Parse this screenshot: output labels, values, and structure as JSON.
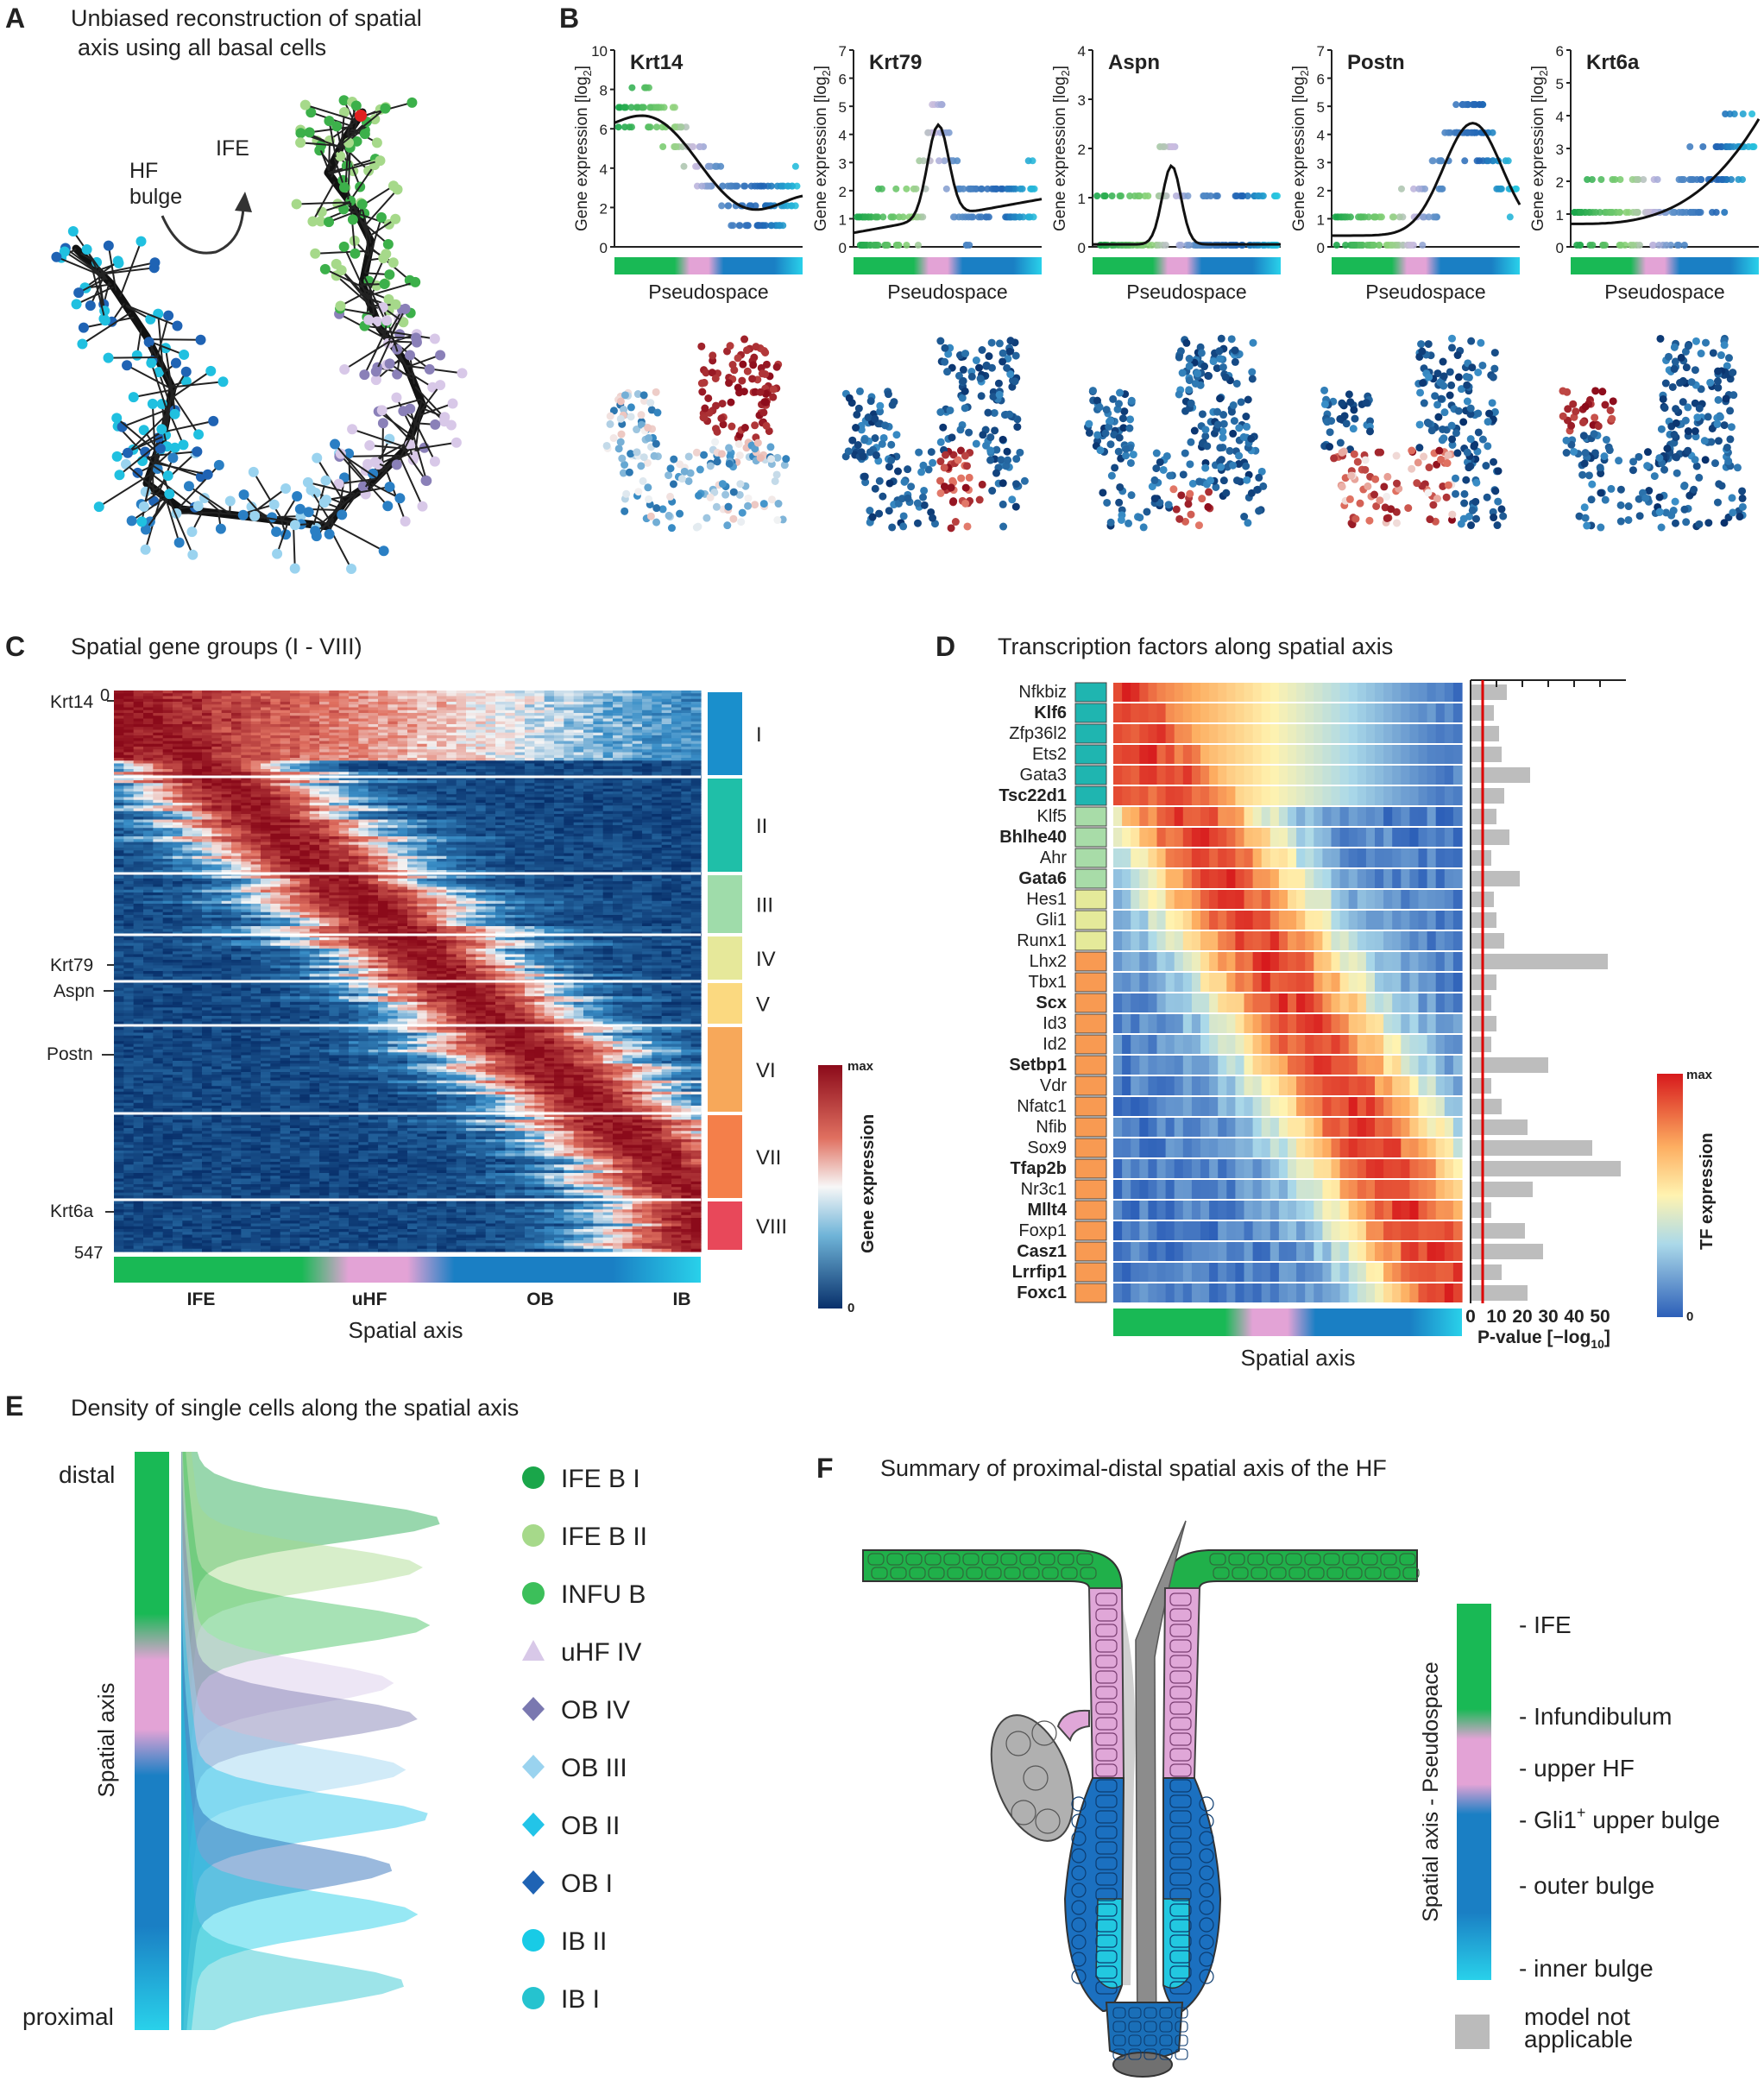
{
  "panels": {
    "a": {
      "letter": "A",
      "title_line1": "Unbiased reconstruction of spatial",
      "title_line2": "axis using all basal cells",
      "label_hf": "HF",
      "label_bulge": "bulge",
      "label_ife": "IFE"
    },
    "b": {
      "letter": "B",
      "ylabel": "Gene expression [log",
      "ylabel_sub": "2",
      "ylabel_end": "]",
      "xlabel": "Pseudospace",
      "genes": [
        {
          "name": "Krt14",
          "ymax": 10,
          "ticks": [
            0,
            2,
            4,
            6,
            8,
            10
          ]
        },
        {
          "name": "Krt79",
          "ymax": 7,
          "ticks": [
            0,
            1,
            2,
            3,
            4,
            5,
            6,
            7
          ]
        },
        {
          "name": "Aspn",
          "ymax": 4,
          "ticks": [
            0,
            1,
            2,
            3,
            4
          ]
        },
        {
          "name": "Postn",
          "ymax": 7,
          "ticks": [
            0,
            1,
            2,
            3,
            4,
            5,
            6,
            7
          ]
        },
        {
          "name": "Krt6a",
          "ymax": 6,
          "ticks": [
            0,
            1,
            2,
            3,
            4,
            5,
            6
          ]
        }
      ]
    },
    "c": {
      "letter": "C",
      "title": "Spatial gene groups (I - VIII)",
      "gene_labels": [
        "Krt14",
        "Krt79",
        "Aspn",
        "Postn",
        "Krt6a"
      ],
      "row_top": "0",
      "row_bottom": "547",
      "groups": [
        "I",
        "II",
        "III",
        "IV",
        "V",
        "VI",
        "VII",
        "VIII"
      ],
      "x_ticks": [
        "IFE",
        "uHF",
        "OB",
        "IB"
      ],
      "xlabel": "Spatial axis",
      "colorbar_label": "Gene expression",
      "colorbar_max": "max",
      "colorbar_min": "0"
    },
    "d": {
      "letter": "D",
      "title": "Transcription factors along spatial axis",
      "factors": [
        "Nfkbiz",
        "Klf6",
        "Zfp36l2",
        "Ets2",
        "Gata3",
        "Tsc22d1",
        "Klf5",
        "Bhlhe40",
        "Ahr",
        "Gata6",
        "Hes1",
        "Gli1",
        "Runx1",
        "Lhx2",
        "Tbx1",
        "Scx",
        "Id3",
        "Id2",
        "Setbp1",
        "Vdr",
        "Nfatc1",
        "Nfib",
        "Sox9",
        "Tfap2b",
        "Nr3c1",
        "Mllt4",
        "Foxp1",
        "Casz1",
        "Lrrfip1",
        "Foxc1"
      ],
      "bold": [
        "Klf6",
        "Tsc22d1",
        "Bhlhe40",
        "Gata6",
        "Scx",
        "Setbp1",
        "Tfap2b",
        "Mllt4",
        "Casz1",
        "Lrrfip1",
        "Foxc1"
      ],
      "pvalues": [
        14,
        9,
        11,
        12,
        23,
        13,
        10,
        15,
        8,
        19,
        9,
        10,
        13,
        53,
        10,
        8,
        10,
        8,
        30,
        8,
        12,
        22,
        47,
        58,
        24,
        8,
        21,
        28,
        12,
        22
      ],
      "p_ticks": [
        "0",
        "10",
        "20",
        "30",
        "40",
        "50"
      ],
      "p_label": "P-value [−log",
      "p_label_sub": "10",
      "p_label_end": "]",
      "xlabel": "Spatial axis",
      "colorbar_label": "TF expression",
      "colorbar_max": "max",
      "colorbar_min": "0"
    },
    "e": {
      "letter": "E",
      "title": "Density of single cells along the spatial axis",
      "label_distal": "distal",
      "label_proximal": "proximal",
      "axis_label": "Spatial axis",
      "legend": [
        {
          "label": "IFE B I",
          "color": "#1aa64a",
          "shape": "circle"
        },
        {
          "label": "IFE B II",
          "color": "#a6d98a",
          "shape": "circle"
        },
        {
          "label": "INFU B",
          "color": "#3cbf5a",
          "shape": "circle"
        },
        {
          "label": "uHF IV",
          "color": "#d8c8e8",
          "shape": "triangle"
        },
        {
          "label": "OB IV",
          "color": "#7a78b0",
          "shape": "diamond"
        },
        {
          "label": "OB III",
          "color": "#9ad3ef",
          "shape": "diamond"
        },
        {
          "label": "OB II",
          "color": "#22c4e8",
          "shape": "diamond"
        },
        {
          "label": "OB I",
          "color": "#1f63b4",
          "shape": "diamond"
        },
        {
          "label": "IB II",
          "color": "#18cbe6",
          "shape": "circle"
        },
        {
          "label": "IB I",
          "color": "#25c3cf",
          "shape": "circle"
        }
      ]
    },
    "f": {
      "letter": "F",
      "title": "Summary of proximal-distal spatial axis of the HF",
      "axis_label": "Spatial axis - Pseudospace",
      "regions": [
        "- IFE",
        "- Infundibulum",
        "- upper HF",
        "- Gli1",
        "- outer bulge",
        "- inner bulge"
      ],
      "gli_sup": "+",
      "gli_rest": " upper bulge",
      "na_line1": "model not",
      "na_line2": "applicable"
    }
  },
  "colors": {
    "ife": "#1db954",
    "uhf": "#e3a3d6",
    "ob": "#1a7fc4",
    "ib": "#29d1ea",
    "red": "#b2182b",
    "blue": "#2166ac",
    "na_gray": "#bbbbbb"
  }
}
